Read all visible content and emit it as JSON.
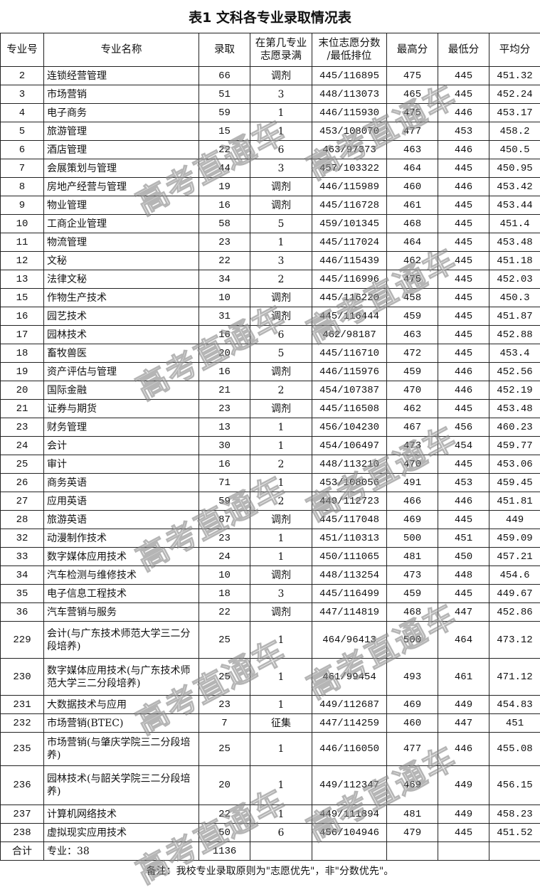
{
  "title": "表1  文科各专业录取情况表",
  "columns": [
    "专业号",
    "专业名称",
    "录取",
    "在第几专业志愿录满",
    "末位志愿分数/最低排位",
    "最高分",
    "最低分",
    "平均分"
  ],
  "columns_display": [
    "专业号",
    "专业名称",
    "录取",
    "在第几专业\n志愿录满",
    "末位志愿分数\n/最低排位",
    "最高分",
    "最低分",
    "平均分"
  ],
  "rows": [
    [
      "2",
      "连锁经营管理",
      "66",
      "调剂",
      "445/116895",
      "475",
      "445",
      "451.32"
    ],
    [
      "3",
      "市场营销",
      "51",
      "3",
      "448/113073",
      "465",
      "445",
      "452.24"
    ],
    [
      "4",
      "电子商务",
      "59",
      "1",
      "446/115930",
      "475",
      "446",
      "453.17"
    ],
    [
      "5",
      "旅游管理",
      "15",
      "1",
      "453/108070",
      "477",
      "453",
      "458.2"
    ],
    [
      "6",
      "酒店管理",
      "22",
      "6",
      "463/97373",
      "463",
      "446",
      "450.5"
    ],
    [
      "7",
      "会展策划与管理",
      "44",
      "3",
      "457/103322",
      "464",
      "445",
      "450.95"
    ],
    [
      "8",
      "房地产经营与管理",
      "19",
      "调剂",
      "446/115989",
      "460",
      "446",
      "453.42"
    ],
    [
      "9",
      "物业管理",
      "16",
      "调剂",
      "445/116728",
      "461",
      "445",
      "453.44"
    ],
    [
      "10",
      "工商企业管理",
      "58",
      "5",
      "459/101345",
      "468",
      "445",
      "451.4"
    ],
    [
      "11",
      "物流管理",
      "23",
      "1",
      "445/117024",
      "464",
      "445",
      "453.48"
    ],
    [
      "12",
      "文秘",
      "22",
      "3",
      "446/115439",
      "462",
      "445",
      "451.18"
    ],
    [
      "13",
      "法律文秘",
      "34",
      "2",
      "445/116996",
      "475",
      "445",
      "452.03"
    ],
    [
      "15",
      "作物生产技术",
      "10",
      "调剂",
      "445/116220",
      "458",
      "445",
      "450.3"
    ],
    [
      "16",
      "园艺技术",
      "31",
      "调剂",
      "445/116444",
      "459",
      "445",
      "451.87"
    ],
    [
      "17",
      "园林技术",
      "16",
      "6",
      "462/98187",
      "463",
      "445",
      "452.88"
    ],
    [
      "18",
      "畜牧兽医",
      "20",
      "5",
      "445/116710",
      "472",
      "445",
      "453.4"
    ],
    [
      "19",
      "资产评估与管理",
      "16",
      "调剂",
      "446/115976",
      "459",
      "446",
      "452.56"
    ],
    [
      "20",
      "国际金融",
      "21",
      "2",
      "454/107387",
      "470",
      "446",
      "452.19"
    ],
    [
      "21",
      "证券与期货",
      "23",
      "调剂",
      "445/116508",
      "462",
      "445",
      "453.48"
    ],
    [
      "23",
      "财务管理",
      "13",
      "1",
      "456/104230",
      "467",
      "456",
      "460.23"
    ],
    [
      "24",
      "会计",
      "30",
      "1",
      "454/106497",
      "473",
      "454",
      "459.77"
    ],
    [
      "25",
      "审计",
      "16",
      "2",
      "448/113210",
      "470",
      "445",
      "453.06"
    ],
    [
      "26",
      "商务英语",
      "71",
      "1",
      "453/108056",
      "491",
      "453",
      "459.45"
    ],
    [
      "27",
      "应用英语",
      "59",
      "2",
      "449/112723",
      "466",
      "446",
      "451.81"
    ],
    [
      "28",
      "旅游英语",
      "87",
      "调剂",
      "445/117048",
      "469",
      "445",
      "449"
    ],
    [
      "32",
      "动漫制作技术",
      "23",
      "1",
      "451/110313",
      "500",
      "451",
      "459.09"
    ],
    [
      "33",
      "数字媒体应用技术",
      "24",
      "1",
      "450/111065",
      "481",
      "450",
      "457.21"
    ],
    [
      "34",
      "汽车检测与维修技术",
      "10",
      "调剂",
      "448/113254",
      "473",
      "448",
      "454.6"
    ],
    [
      "35",
      "电子信息工程技术",
      "18",
      "3",
      "445/116499",
      "459",
      "445",
      "449.67"
    ],
    [
      "36",
      "汽车营销与服务",
      "22",
      "调剂",
      "447/114819",
      "468",
      "447",
      "452.86"
    ],
    [
      "229",
      "会计(与广东技术师范大学三二分段培养)",
      "25",
      "1",
      "464/96413",
      "500",
      "464",
      "473.12"
    ],
    [
      "230",
      "数字媒体应用技术(与广东技术师范大学三二分段培养)",
      "25",
      "1",
      "461/99454",
      "493",
      "461",
      "471.12"
    ],
    [
      "231",
      "大数据技术与应用",
      "23",
      "1",
      "449/112687",
      "469",
      "449",
      "454.83"
    ],
    [
      "232",
      "市场营销(BTEC)",
      "7",
      "征集",
      "447/114259",
      "460",
      "447",
      "451"
    ],
    [
      "235",
      "市场营销(与肇庆学院三二分段培养)",
      "25",
      "1",
      "446/116050",
      "477",
      "446",
      "455.08"
    ],
    [
      "236",
      "园林技术(与韶关学院三二分段培养)",
      "20",
      "1",
      "449/112347",
      "469",
      "449",
      "456.15"
    ],
    [
      "237",
      "计算机网络技术",
      "22",
      "1",
      "449/111894",
      "481",
      "449",
      "458.23"
    ],
    [
      "238",
      "虚拟现实应用技术",
      "50",
      "6",
      "456/104946",
      "479",
      "445",
      "451.52"
    ]
  ],
  "total": {
    "label": "合计",
    "majors": "专业：38",
    "admitted": "1136"
  },
  "note": "备注：我校专业录取原则为\"志愿优先\"，非\"分数优先\"。",
  "watermark": "高考直通车"
}
